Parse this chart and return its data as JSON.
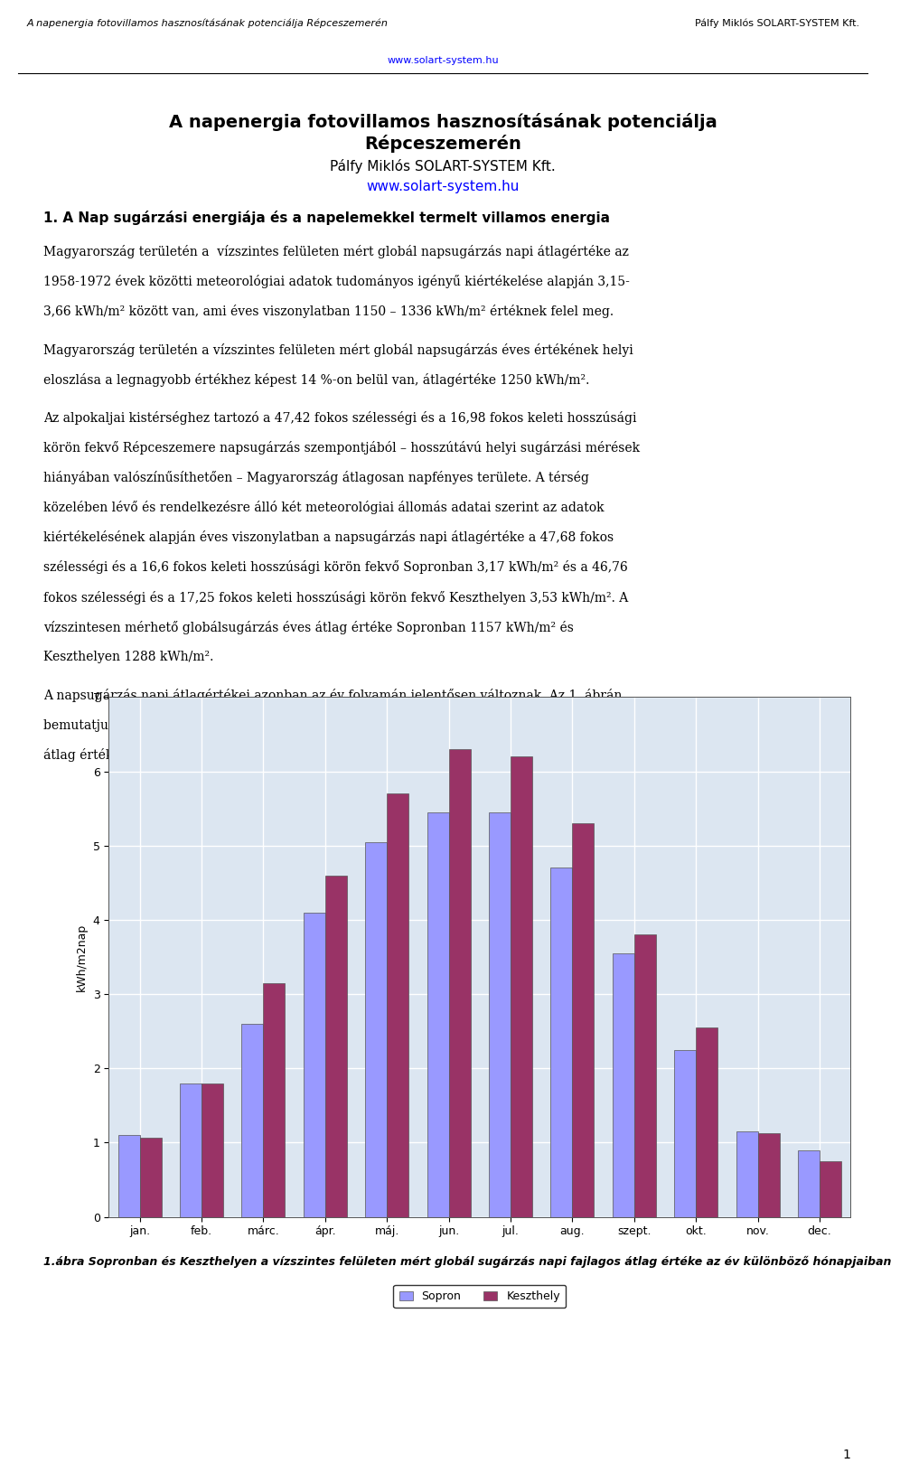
{
  "header_left": "A napenergia fotovillamos hasznosításának potenciálja Répceszemerén",
  "header_right": "Pálfy Miklós SOLART-SYSTEM Kft.",
  "header_url": "www.solart-system.hu",
  "main_title_line1": "A napenergia fotovillamos hasznosításának potenciálja",
  "main_title_line2": "Répceszemerén",
  "subtitle": "Pálfy Miklós SOLART-SYSTEM Kft.",
  "subtitle_url": "www.solart-system.hu",
  "section_title": "1. A Nap sugárzási energiája és a napelemekkel termelt villamos energia",
  "chart_months": [
    "jan.",
    "feb.",
    "márc.",
    "ápr.",
    "máj.",
    "jun.",
    "jul.",
    "aug.",
    "szept.",
    "okt.",
    "nov.",
    "dec."
  ],
  "sopron_values": [
    1.1,
    1.8,
    2.6,
    4.1,
    5.05,
    5.45,
    5.45,
    4.7,
    3.55,
    2.25,
    1.15,
    0.9
  ],
  "keszthely_values": [
    1.07,
    1.8,
    3.15,
    4.6,
    5.7,
    6.3,
    6.2,
    5.3,
    3.8,
    2.55,
    1.13,
    0.75
  ],
  "ylabel": "kWh/m2nap",
  "ylim": [
    0,
    7
  ],
  "yticks": [
    0,
    1,
    2,
    3,
    4,
    5,
    6,
    7
  ],
  "sopron_color": "#9999FF",
  "keszthely_color": "#993366",
  "legend_sopron": "Sopron",
  "legend_keszthely": "Keszthely",
  "figure_caption": "1.ábra Sopronban és Keszthelyen a vízszintes felületen mért globál sugárzás napi fajlagos átlag értéke az év különböző hónapjaiban",
  "page_number": "1",
  "background_color": "#ffffff",
  "chart_background": "#dce6f1",
  "grid_color": "#ffffff",
  "bar_width": 0.35
}
